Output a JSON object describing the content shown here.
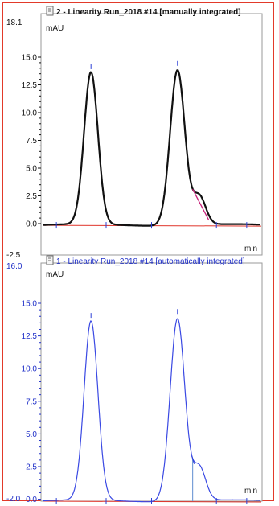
{
  "colors": {
    "frame_border": "#e23a2a",
    "top_trace": "#111111",
    "top_axis_text": "#111111",
    "bottom_trace": "#3a49e3",
    "bottom_axis_text": "#2030c8",
    "baseline": "#e0352b",
    "marker": "#2b3fd6",
    "top_segment": "#c8207a",
    "bottom_segment": "#7aa0d8"
  },
  "panels": [
    {
      "id": "top",
      "title": "2 - Linearity Run_2018 #14 [manually integrated]",
      "title_icon": "chromatogram-icon",
      "ylabel": "mAU",
      "xlabel": "min",
      "y_top_label": "18.1",
      "y_bottom_label": "-2.5",
      "y_ticks": [
        "15.0",
        "12.5",
        "10.0",
        "7.5",
        "5.0",
        "2.5",
        "0.0"
      ],
      "chart_data": {
        "type": "line",
        "ylim": [
          -2.5,
          18.1
        ],
        "peaks": [
          {
            "x": 0.22,
            "height": 13.7
          },
          {
            "x": 0.62,
            "height": 14.0
          },
          {
            "x": 0.72,
            "height": 2.6
          }
        ]
      }
    },
    {
      "id": "bottom",
      "title": "1 - Linearity Run_2018 #14 [automatically integrated]",
      "title_icon": "chromatogram-icon",
      "ylabel": "mAU",
      "xlabel": "min",
      "y_top_label": "16.0",
      "y_bottom_label": "-2.0",
      "y_ticks": [
        "15.0",
        "12.5",
        "10.0",
        "7.5",
        "5.0",
        "2.5",
        "0.0"
      ],
      "chart_data": {
        "type": "line",
        "ylim": [
          -2.0,
          16.0
        ],
        "peaks": [
          {
            "x": 0.22,
            "height": 13.7
          },
          {
            "x": 0.62,
            "height": 14.0
          },
          {
            "x": 0.72,
            "height": 2.6
          }
        ]
      }
    }
  ]
}
